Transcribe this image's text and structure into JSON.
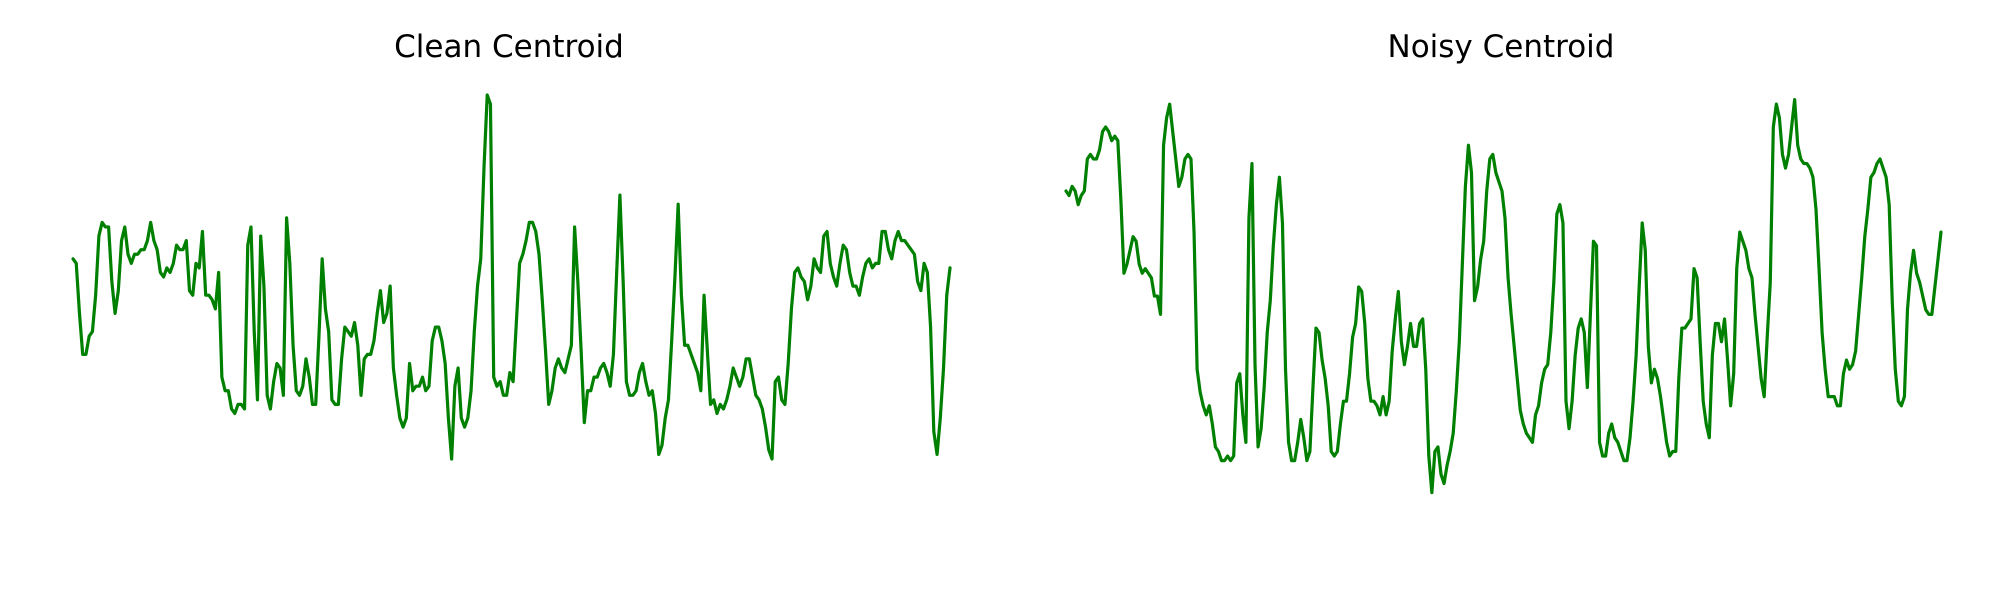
{
  "chart_data": [
    {
      "type": "line",
      "title": "Clean Centroid",
      "xlabel": "",
      "ylabel": "",
      "axes_visible": false,
      "grid": false,
      "color": "#008000",
      "ylim": [
        0,
        100
      ],
      "values": [
        64,
        63,
        52,
        43,
        43,
        47,
        48,
        56,
        69,
        72,
        71,
        71,
        59,
        52,
        57,
        68,
        71,
        65,
        63,
        65,
        65,
        66,
        66,
        68,
        72,
        68,
        66,
        61,
        60,
        62,
        61,
        63,
        67,
        66,
        66,
        68,
        57,
        56,
        63,
        62,
        70,
        56,
        56,
        55,
        53,
        61,
        38,
        35,
        35,
        31,
        30,
        32,
        32,
        31,
        67,
        71,
        48,
        33,
        69,
        58,
        34,
        31,
        37,
        41,
        40,
        34,
        73,
        63,
        45,
        35,
        34,
        36,
        42,
        38,
        32,
        32,
        47,
        64,
        53,
        48,
        33,
        32,
        32,
        42,
        49,
        48,
        47,
        50,
        45,
        34,
        42,
        43,
        43,
        46,
        52,
        57,
        50,
        52,
        58,
        40,
        34,
        29,
        27,
        29,
        41,
        35,
        36,
        36,
        38,
        35,
        36,
        46,
        49,
        49,
        46,
        41,
        29,
        20,
        36,
        40,
        29,
        27,
        29,
        35,
        48,
        58,
        64,
        84,
        100,
        98,
        38,
        36,
        37,
        34,
        34,
        39,
        37,
        50,
        63,
        65,
        68,
        72,
        72,
        70,
        65,
        55,
        44,
        32,
        35,
        40,
        42,
        40,
        39,
        42,
        45,
        71,
        59,
        44,
        28,
        35,
        35,
        38,
        38,
        40,
        41,
        39,
        36,
        43,
        61,
        78,
        59,
        37,
        34,
        34,
        35,
        39,
        41,
        37,
        34,
        35,
        30,
        21,
        23,
        29,
        33,
        46,
        60,
        76,
        56,
        45,
        45,
        43,
        41,
        39,
        35,
        56,
        44,
        32,
        33,
        30,
        32,
        31,
        33,
        36,
        40,
        38,
        36,
        38,
        42,
        42,
        38,
        34,
        33,
        31,
        27,
        22,
        20,
        37,
        38,
        33,
        32,
        41,
        53,
        61,
        62,
        60,
        59,
        55,
        58,
        64,
        62,
        61,
        69,
        70,
        63,
        60,
        58,
        63,
        67,
        66,
        61,
        58,
        58,
        56,
        60,
        63,
        64,
        62,
        63,
        63,
        70,
        70,
        66,
        64,
        68,
        70,
        68,
        68,
        67,
        66,
        65,
        59,
        57,
        63,
        61,
        49,
        26,
        21,
        29,
        40,
        56,
        62
      ]
    },
    {
      "type": "line",
      "title": "Noisy Centroid",
      "xlabel": "",
      "ylabel": "",
      "axes_visible": false,
      "grid": false,
      "color": "#008000",
      "ylim": [
        0,
        100
      ],
      "values": [
        79,
        78,
        80,
        79,
        76,
        78,
        79,
        86,
        87,
        86,
        86,
        88,
        92,
        93,
        92,
        90,
        91,
        90,
        77,
        61,
        63,
        66,
        69,
        68,
        63,
        61,
        62,
        61,
        60,
        56,
        56,
        52,
        89,
        95,
        98,
        92,
        86,
        80,
        82,
        86,
        87,
        86,
        70,
        40,
        35,
        32,
        30,
        32,
        28,
        23,
        22,
        20,
        20,
        21,
        20,
        21,
        37,
        39,
        30,
        24,
        73,
        85,
        41,
        23,
        27,
        36,
        48,
        55,
        67,
        76,
        82,
        72,
        40,
        24,
        20,
        20,
        24,
        29,
        25,
        20,
        22,
        36,
        49,
        48,
        42,
        38,
        32,
        22,
        21,
        22,
        28,
        33,
        33,
        39,
        47,
        50,
        58,
        57,
        50,
        38,
        33,
        33,
        32,
        30,
        34,
        30,
        33,
        44,
        51,
        57,
        46,
        41,
        45,
        50,
        45,
        45,
        50,
        51,
        40,
        21,
        13,
        22,
        23,
        17,
        15,
        19,
        22,
        26,
        35,
        46,
        63,
        80,
        89,
        83,
        55,
        58,
        64,
        68,
        79,
        86,
        87,
        83,
        81,
        79,
        73,
        60,
        52,
        45,
        38,
        31,
        28,
        26,
        25,
        24,
        30,
        32,
        37,
        40,
        41,
        48,
        59,
        74,
        76,
        72,
        33,
        27,
        33,
        43,
        49,
        51,
        48,
        36,
        52,
        68,
        67,
        24,
        21,
        21,
        26,
        28,
        25,
        24,
        22,
        20,
        20,
        25,
        33,
        43,
        58,
        72,
        66,
        45,
        37,
        40,
        38,
        34,
        29,
        24,
        21,
        22,
        22,
        38,
        49,
        49,
        50,
        51,
        62,
        60,
        46,
        33,
        28,
        25,
        43,
        50,
        50,
        46,
        51,
        42,
        32,
        39,
        62,
        70,
        68,
        66,
        62,
        60,
        52,
        45,
        38,
        34,
        47,
        59,
        93,
        98,
        95,
        87,
        84,
        87,
        93,
        99,
        89,
        86,
        85,
        85,
        84,
        82,
        75,
        62,
        48,
        40,
        34,
        34,
        34,
        32,
        32,
        39,
        42,
        40,
        41,
        44,
        52,
        60,
        69,
        75,
        82,
        83,
        85,
        86,
        84,
        82,
        76,
        55,
        40,
        33,
        32,
        34,
        53,
        61,
        66,
        61,
        59,
        56,
        53,
        52,
        52,
        58,
        64,
        70
      ]
    }
  ]
}
